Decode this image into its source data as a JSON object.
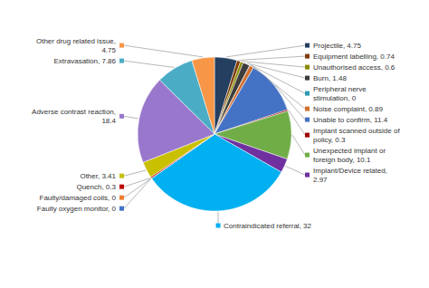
{
  "chart_data": {
    "type": "pie",
    "categories": [
      "Projectile, 4.75",
      "Equipment labelling, 0.74",
      "Unauthorised access, 0.6",
      "Burn, 1.48",
      "Peripheral nerve\nstimulation, 0",
      "Noise complaint, 0.89",
      "Unable to confirm, 11.4",
      "Implant scanned outside of\npolicy, 0.3",
      "Unexpected implant or\nforeign body, 10.1",
      "Implant/Device related,\n2.97",
      "Contraindicated referral, 32",
      "Faulty oxygen monitor, 0",
      "Faulty/damaged coils, 0",
      "Quench, 0.3",
      "Other, 3.41",
      "Adverse contrast reaction,\n18.4",
      "Extravasation, 7.86",
      "Other drug related issue,\n4.75"
    ],
    "values": [
      4.75,
      0.74,
      0.6,
      1.48,
      0.01,
      0.89,
      11.4,
      0.3,
      10.1,
      2.97,
      32,
      0.01,
      0.01,
      0.3,
      3.41,
      18.4,
      7.86,
      4.75
    ],
    "colors": [
      "#243f60",
      "#7f3b08",
      "#8b8b00",
      "#3d3d3d",
      "#2e9ab5",
      "#d07030",
      "#4472c4",
      "#a00000",
      "#70ad47",
      "#7030a0",
      "#00b0f0",
      "#4472c4",
      "#ed7d31",
      "#c00000",
      "#c8c000",
      "#9977cc",
      "#4bacc6",
      "#f79646"
    ]
  }
}
